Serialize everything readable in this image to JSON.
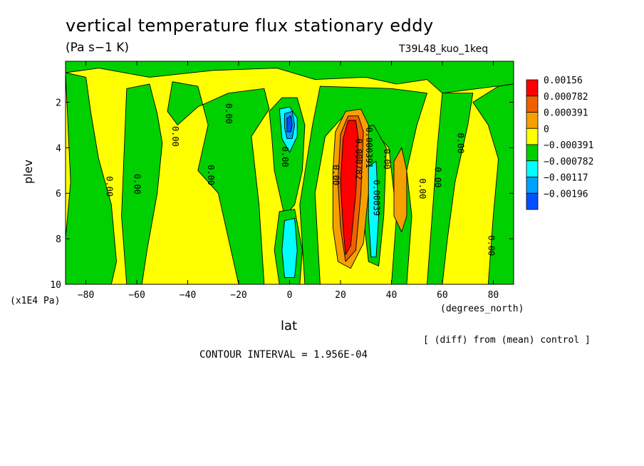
{
  "chart_data": {
    "type": "contour",
    "title": "vertical temperature flux stationary eddy",
    "units": "(Pa s−1 K)",
    "run_label": "T39L48_kuo_1keq",
    "xlabel": "lat",
    "xlabel_units": "(degrees_north)",
    "ylabel": "plev",
    "ylabel_units": "(x1E4 Pa)",
    "xlim": [
      -88,
      88
    ],
    "ylim": [
      10,
      0.2
    ],
    "x_ticks": [
      -80,
      -60,
      -40,
      -20,
      0,
      20,
      40,
      60,
      80
    ],
    "x_tick_labels": [
      "−80",
      "−60",
      "−40",
      "−20",
      "0",
      "20",
      "40",
      "60",
      "80"
    ],
    "y_ticks": [
      2,
      4,
      6,
      8,
      10
    ],
    "y_tick_labels": [
      "2",
      "4",
      "6",
      "8",
      "10"
    ],
    "note": "[ (diff) from (mean) control ]",
    "contour_interval": "CONTOUR INTERVAL = 1.956E-04",
    "colorbar": [
      {
        "label": "0.00156",
        "color": "#ff0000"
      },
      {
        "label": "0.000782",
        "color": "#f06000"
      },
      {
        "label": "0.000391",
        "color": "#f6a000"
      },
      {
        "label": "0",
        "color": "#ffff00"
      },
      {
        "label": "−0.000391",
        "color": "#00d000"
      },
      {
        "label": "−0.000782",
        "color": "#00ffff"
      },
      {
        "label": "−0.00117",
        "color": "#00a0ff"
      },
      {
        "label": "−0.00196",
        "color": "#0050ff"
      }
    ],
    "contour_labels": [
      {
        "text": "0.00",
        "x": -71,
        "y": 5.7
      },
      {
        "text": "0.00",
        "x": -60,
        "y": 5.6
      },
      {
        "text": "0.00",
        "x": -45,
        "y": 3.5
      },
      {
        "text": "0.00",
        "x": -31,
        "y": 5.2
      },
      {
        "text": "0.00",
        "x": -24,
        "y": 2.5
      },
      {
        "text": "0.00",
        "x": -2,
        "y": 4.4
      },
      {
        "text": "0.00",
        "x": 18,
        "y": 5.2
      },
      {
        "text": "0.000782",
        "x": 27,
        "y": 4.5
      },
      {
        "text": "0.000391",
        "x": 31,
        "y": 4.0
      },
      {
        "text": "0.00039",
        "x": 34,
        "y": 6.2
      },
      {
        "text": "0.00",
        "x": 38,
        "y": 4.5
      },
      {
        "text": "0.00",
        "x": 52,
        "y": 5.8
      },
      {
        "text": "0.00",
        "x": 58,
        "y": 5.3
      },
      {
        "text": "0.00",
        "x": 67,
        "y": 3.8
      },
      {
        "text": "0.00",
        "x": 79,
        "y": 8.3
      }
    ],
    "regions": [
      {
        "level": "−0.000391",
        "color": "#00d000",
        "polygons": [
          [
            [
              -88,
              0.2
            ],
            [
              88,
              0.2
            ],
            [
              88,
              1.2
            ],
            [
              60,
              1.6
            ],
            [
              54,
              1.0
            ],
            [
              42,
              1.2
            ],
            [
              30,
              0.9
            ],
            [
              10,
              1.0
            ],
            [
              -5,
              0.5
            ],
            [
              -30,
              0.6
            ],
            [
              -55,
              0.9
            ],
            [
              -75,
              0.5
            ],
            [
              -88,
              0.7
            ]
          ],
          [
            [
              -88,
              0.7
            ],
            [
              -80,
              0.9
            ],
            [
              -78,
              2.5
            ],
            [
              -75,
              4.5
            ],
            [
              -70,
              6.5
            ],
            [
              -68,
              9.0
            ],
            [
              -70,
              10
            ],
            [
              -88,
              10
            ],
            [
              -88,
              8.0
            ],
            [
              -86,
              5.5
            ]
          ],
          [
            [
              -64,
              1.4
            ],
            [
              -55,
              1.2
            ],
            [
              -52,
              2.5
            ],
            [
              -50,
              3.8
            ],
            [
              -52,
              6.0
            ],
            [
              -56,
              8.5
            ],
            [
              -58,
              10
            ],
            [
              -64,
              10
            ],
            [
              -66,
              7.0
            ]
          ],
          [
            [
              -46,
              1.1
            ],
            [
              -36,
              1.3
            ],
            [
              -32,
              3.0
            ],
            [
              -36,
              5.0
            ],
            [
              -28,
              6.0
            ],
            [
              -24,
              8.0
            ],
            [
              -20,
              10
            ],
            [
              -10,
              10
            ],
            [
              -12,
              6.5
            ],
            [
              -15,
              3.5
            ],
            [
              -8,
              2.3
            ],
            [
              -10,
              1.4
            ],
            [
              -24,
              1.6
            ],
            [
              -36,
              2.2
            ],
            [
              -44,
              3.0
            ],
            [
              -48,
              2.4
            ]
          ],
          [
            [
              -8,
              2.4
            ],
            [
              -3,
              1.8
            ],
            [
              3,
              1.8
            ],
            [
              6,
              3.0
            ],
            [
              5,
              5.0
            ],
            [
              2,
              6.5
            ],
            [
              -2,
              7.0
            ],
            [
              -6,
              5.0
            ],
            [
              -7,
              3.5
            ]
          ],
          [
            [
              -4,
              6.8
            ],
            [
              2,
              6.7
            ],
            [
              5,
              8.5
            ],
            [
              4,
              10
            ],
            [
              -4,
              10
            ],
            [
              -6,
              8.5
            ]
          ],
          [
            [
              12,
              1.3
            ],
            [
              40,
              1.4
            ],
            [
              54,
              1.6
            ],
            [
              50,
              3.0
            ],
            [
              46,
              5.0
            ],
            [
              48,
              7.0
            ],
            [
              46,
              10
            ],
            [
              40,
              10
            ],
            [
              42,
              7.0
            ],
            [
              39,
              4.0
            ],
            [
              31,
              3.0
            ],
            [
              22,
              2.5
            ],
            [
              14,
              3.5
            ],
            [
              10,
              6.0
            ],
            [
              12,
              10
            ],
            [
              6,
              10
            ],
            [
              4,
              6.5
            ],
            [
              9,
              3.0
            ]
          ],
          [
            [
              28,
              3.2
            ],
            [
              33,
              3.0
            ],
            [
              38,
              4.0
            ],
            [
              37,
              7.0
            ],
            [
              35,
              9.2
            ],
            [
              31,
              9.0
            ],
            [
              29,
              7.0
            ],
            [
              28,
              5.0
            ]
          ],
          [
            [
              60,
              1.6
            ],
            [
              72,
              1.6
            ],
            [
              70,
              3.0
            ],
            [
              65,
              5.5
            ],
            [
              62,
              8.0
            ],
            [
              60,
              10
            ],
            [
              54,
              10
            ],
            [
              56,
              7.0
            ],
            [
              58,
              4.0
            ]
          ],
          [
            [
              72,
              2.0
            ],
            [
              82,
              1.3
            ],
            [
              88,
              1.2
            ],
            [
              88,
              10
            ],
            [
              78,
              10
            ],
            [
              80,
              7.0
            ],
            [
              82,
              4.5
            ],
            [
              78,
              3.0
            ]
          ]
        ]
      },
      {
        "level": "0.000391",
        "color": "#f6a000",
        "polygons": [
          [
            [
              18,
              3.3
            ],
            [
              22,
              2.4
            ],
            [
              28,
              2.3
            ],
            [
              31,
              3.0
            ],
            [
              31,
              6.0
            ],
            [
              29,
              8.2
            ],
            [
              24,
              9.3
            ],
            [
              19,
              9.0
            ],
            [
              17,
              7.5
            ],
            [
              17,
              5.0
            ]
          ],
          [
            [
              41,
              4.6
            ],
            [
              44,
              4.0
            ],
            [
              46,
              5.0
            ],
            [
              46,
              7.0
            ],
            [
              44,
              7.7
            ],
            [
              41,
              7.0
            ]
          ]
        ]
      },
      {
        "level": "0.000782",
        "color": "#f06000",
        "polygons": [
          [
            [
              20,
              3.4
            ],
            [
              23,
              2.6
            ],
            [
              27,
              2.6
            ],
            [
              29,
              3.3
            ],
            [
              28,
              6.0
            ],
            [
              26,
              8.5
            ],
            [
              22,
              9.0
            ],
            [
              20,
              7.5
            ],
            [
              19,
              5.5
            ]
          ]
        ]
      },
      {
        "level": "0.00156",
        "color": "#ff0000",
        "polygons": [
          [
            [
              21,
              3.6
            ],
            [
              23,
              2.8
            ],
            [
              26,
              2.8
            ],
            [
              27,
              3.6
            ],
            [
              26,
              6.0
            ],
            [
              24,
              8.3
            ],
            [
              22,
              8.7
            ],
            [
              21,
              7.5
            ],
            [
              20,
              5.5
            ]
          ]
        ]
      },
      {
        "level": "−0.000782",
        "color": "#00ffff",
        "polygons": [
          [
            [
              -4,
              2.3
            ],
            [
              0,
              2.2
            ],
            [
              3,
              2.7
            ],
            [
              3,
              3.5
            ],
            [
              0,
              4.2
            ],
            [
              -3,
              3.6
            ]
          ],
          [
            [
              -2,
              7.2
            ],
            [
              2,
              7.1
            ],
            [
              3,
              8.5
            ],
            [
              2,
              9.7
            ],
            [
              -2,
              9.7
            ],
            [
              -3,
              8.5
            ]
          ],
          [
            [
              31,
              4.8
            ],
            [
              34,
              4.6
            ],
            [
              35,
              7.0
            ],
            [
              34,
              8.8
            ],
            [
              32,
              8.8
            ],
            [
              31,
              7.0
            ]
          ]
        ]
      },
      {
        "level": "−0.00117",
        "color": "#00a0ff",
        "polygons": [
          [
            [
              -2,
              2.5
            ],
            [
              1,
              2.4
            ],
            [
              2,
              3.0
            ],
            [
              1,
              3.6
            ],
            [
              -1,
              3.6
            ],
            [
              -2,
              3.1
            ]
          ]
        ]
      },
      {
        "level": "−0.00196",
        "color": "#0050ff",
        "polygons": [
          [
            [
              -1,
              2.7
            ],
            [
              0.5,
              2.6
            ],
            [
              1,
              3.0
            ],
            [
              0.5,
              3.3
            ],
            [
              -1,
              3.3
            ]
          ]
        ]
      }
    ]
  }
}
